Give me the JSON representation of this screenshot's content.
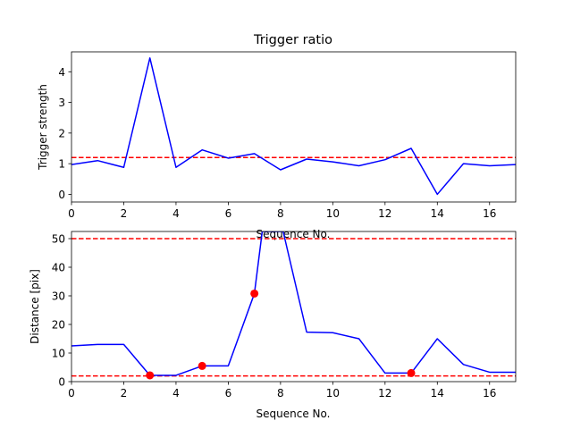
{
  "figure": {
    "background": "#ffffff"
  },
  "chart_data": [
    {
      "type": "line",
      "title": "Trigger ratio",
      "xlabel": "Sequence No.",
      "ylabel": "Trigger strength",
      "xlim": [
        0,
        17
      ],
      "ylim": [
        -0.25,
        4.65
      ],
      "xticks": [
        "0",
        "2",
        "4",
        "6",
        "8",
        "10",
        "12",
        "14",
        "16"
      ],
      "yticks": [
        "0",
        "1",
        "2",
        "3",
        "4"
      ],
      "grid": false,
      "series": [
        {
          "color": "#0000ff",
          "x": [
            0,
            1,
            2,
            3,
            4,
            5,
            6,
            7,
            8,
            9,
            10,
            11,
            12,
            13,
            14,
            15,
            16,
            17
          ],
          "y": [
            0.97,
            1.1,
            0.88,
            4.45,
            0.88,
            1.45,
            1.18,
            1.33,
            0.8,
            1.15,
            1.06,
            0.93,
            1.13,
            1.5,
            0.0,
            1.0,
            0.93,
            0.97
          ]
        }
      ],
      "hlines": [
        {
          "y": 1.2,
          "color": "#ff0000",
          "style": "dashed"
        }
      ]
    },
    {
      "type": "line",
      "title": "",
      "xlabel": "Sequence No.",
      "ylabel": "Distance [pix]",
      "xlim": [
        0,
        17
      ],
      "ylim": [
        0,
        52.5
      ],
      "xticks": [
        "0",
        "2",
        "4",
        "6",
        "8",
        "10",
        "12",
        "14",
        "16"
      ],
      "yticks": [
        "0",
        "10",
        "20",
        "30",
        "40",
        "50"
      ],
      "grid": false,
      "series": [
        {
          "color": "#0000ff",
          "x": [
            0,
            1,
            2,
            3,
            4,
            5,
            6,
            7,
            7.3,
            8.1,
            9,
            10,
            11,
            12,
            13,
            14,
            15,
            16,
            17
          ],
          "y": [
            12.5,
            13.0,
            13.0,
            2.2,
            2.2,
            5.5,
            5.5,
            30.8,
            52.5,
            52.5,
            17.3,
            17.1,
            15.0,
            3.0,
            3.0,
            15.0,
            6.0,
            3.3,
            3.3
          ]
        }
      ],
      "markers": {
        "color": "#ff0000",
        "x": [
          3,
          5,
          7,
          13
        ],
        "y": [
          2.2,
          5.5,
          30.8,
          3.0
        ]
      },
      "hlines": [
        {
          "y": 50,
          "color": "#ff0000",
          "style": "dashed"
        },
        {
          "y": 2,
          "color": "#ff0000",
          "style": "dashed"
        }
      ]
    }
  ]
}
